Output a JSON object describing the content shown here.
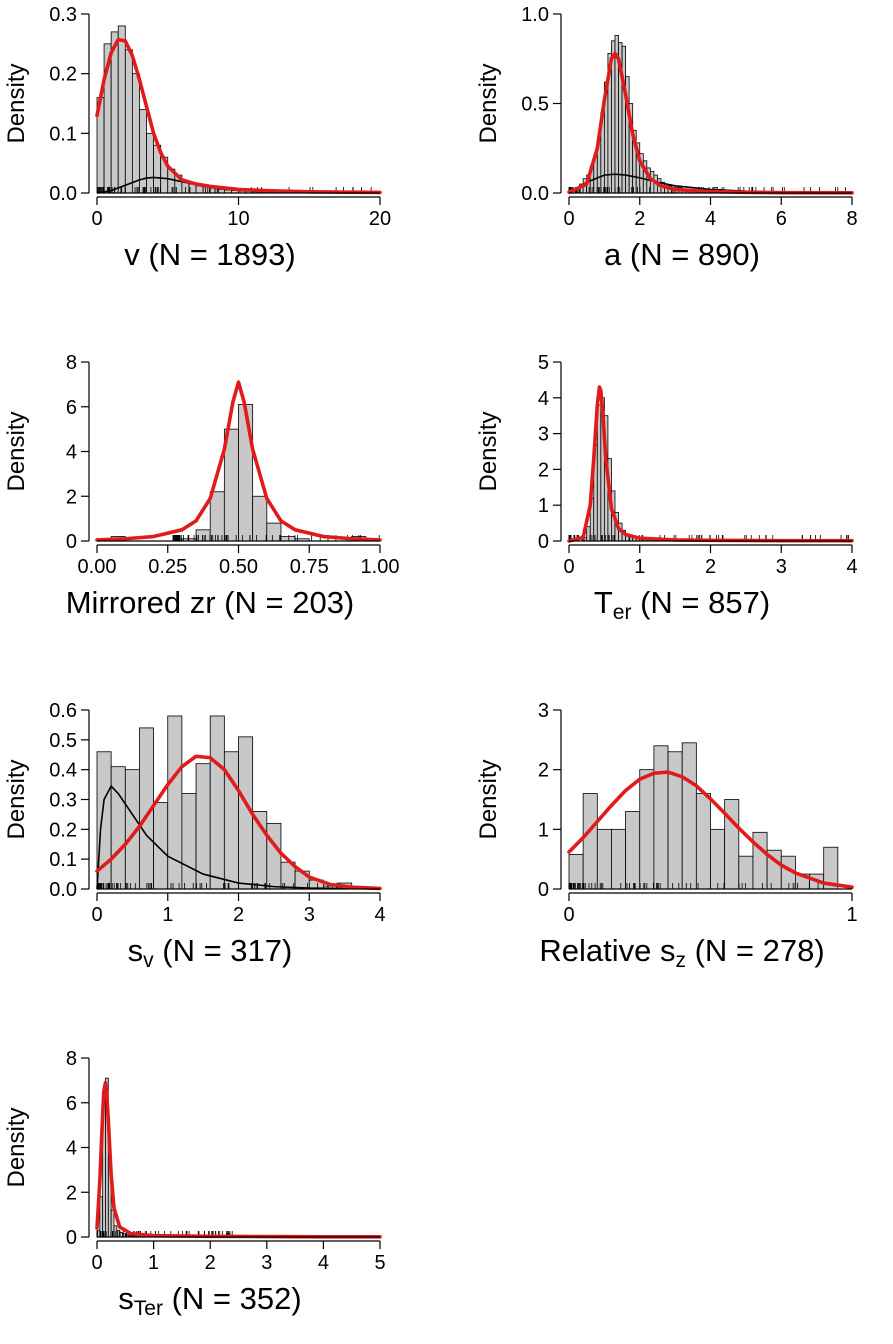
{
  "figure": {
    "panels": [
      {
        "id": "v",
        "caption_prefix": "v",
        "caption_sub": "",
        "caption_suffix": " (N = 1893)"
      },
      {
        "id": "a",
        "caption_prefix": "a",
        "caption_sub": "",
        "caption_suffix": " (N = 890)"
      },
      {
        "id": "zr",
        "caption_prefix": "Mirrored zr  ",
        "caption_sub": "",
        "caption_suffix": "(N = 203)"
      },
      {
        "id": "ter",
        "caption_prefix": "T",
        "caption_sub": "er",
        "caption_suffix": " (N = 857)"
      },
      {
        "id": "sv",
        "caption_prefix": "s",
        "caption_sub": "v",
        "caption_suffix": " (N = 317)"
      },
      {
        "id": "sz",
        "caption_prefix": "Relative s",
        "caption_sub": "z",
        "caption_suffix": " (N = 278)"
      },
      {
        "id": "ster",
        "caption_prefix": "s",
        "caption_sub": "Ter",
        "caption_suffix": " (N = 352)"
      }
    ]
  },
  "colors": {
    "bar_fill": "#c8c8c8",
    "bar_stroke": "#000000",
    "fit_curve": "#e01b1b",
    "component_curve": "#000000"
  },
  "chart_data": [
    {
      "id": "v",
      "type": "bar",
      "subtype": "histogram_density",
      "title": "v (N = 1893)",
      "ylabel": "Density",
      "xlim": [
        0,
        20
      ],
      "ylim": [
        0,
        0.3
      ],
      "xticks": [
        0,
        10,
        20
      ],
      "xtick_labels": [
        "0",
        "10",
        "20"
      ],
      "yticks": [
        0,
        0.1,
        0.2,
        0.3
      ],
      "ytick_labels": [
        "0.0",
        "0.1",
        "0.2",
        "0.3"
      ],
      "bin_start": 0,
      "bin_width": 0.5,
      "values": [
        0.16,
        0.25,
        0.27,
        0.28,
        0.24,
        0.2,
        0.14,
        0.1,
        0.08,
        0.06,
        0.04,
        0.03,
        0.02,
        0.015,
        0.012,
        0.01,
        0.008,
        0.006,
        0.005,
        0.004,
        0.003,
        0.003,
        0.002,
        0.002,
        0.001,
        0.001,
        0.001,
        0.001,
        0.001
      ],
      "fit_curve": {
        "x": [
          0,
          0.5,
          1,
          1.5,
          2,
          2.5,
          3,
          3.5,
          4,
          4.5,
          5,
          6,
          7,
          8,
          10,
          12,
          15,
          20
        ],
        "y": [
          0.13,
          0.19,
          0.235,
          0.257,
          0.255,
          0.23,
          0.19,
          0.145,
          0.1,
          0.068,
          0.045,
          0.022,
          0.015,
          0.011,
          0.006,
          0.004,
          0.002,
          0.001
        ]
      },
      "component_curve": {
        "x": [
          0,
          1,
          2,
          3,
          3.5,
          4,
          5,
          6,
          7,
          8,
          10,
          12,
          15,
          20
        ],
        "y": [
          0,
          0.004,
          0.013,
          0.022,
          0.025,
          0.026,
          0.024,
          0.019,
          0.014,
          0.01,
          0.005,
          0.003,
          0.001,
          0
        ]
      },
      "rug_max": 20
    },
    {
      "id": "a",
      "type": "bar",
      "subtype": "histogram_density",
      "title": "a (N = 890)",
      "ylabel": "Density",
      "xlim": [
        0,
        8
      ],
      "ylim": [
        0,
        1.0
      ],
      "xticks": [
        0,
        2,
        4,
        6,
        8
      ],
      "xtick_labels": [
        "0",
        "2",
        "4",
        "6",
        "8"
      ],
      "yticks": [
        0,
        0.5,
        1.0
      ],
      "ytick_labels": [
        "0.0",
        "0.5",
        "1.0"
      ],
      "bin_start": 0.1,
      "bin_width": 0.1,
      "values": [
        0.01,
        0.03,
        0.05,
        0.08,
        0.1,
        0.15,
        0.2,
        0.3,
        0.45,
        0.62,
        0.78,
        0.85,
        0.88,
        0.84,
        0.82,
        0.65,
        0.5,
        0.35,
        0.28,
        0.22,
        0.18,
        0.14,
        0.12,
        0.1,
        0.08,
        0.06,
        0.05,
        0.04,
        0.04,
        0.03,
        0.03,
        0.02,
        0.02,
        0.02,
        0.01,
        0.01,
        0.01,
        0.01,
        0.01,
        0.01,
        0.03,
        0.02,
        0.01
      ],
      "fit_curve": {
        "x": [
          0,
          0.5,
          0.8,
          1.0,
          1.2,
          1.3,
          1.4,
          1.6,
          1.8,
          2.0,
          2.3,
          2.6,
          3,
          4,
          5,
          6,
          8
        ],
        "y": [
          0.005,
          0.05,
          0.25,
          0.52,
          0.75,
          0.78,
          0.75,
          0.55,
          0.33,
          0.18,
          0.08,
          0.04,
          0.02,
          0.008,
          0.004,
          0.002,
          0.001
        ]
      },
      "component_curve": {
        "x": [
          0,
          0.5,
          1,
          1.3,
          1.6,
          2,
          2.5,
          3,
          4,
          5,
          6,
          8
        ],
        "y": [
          0,
          0.06,
          0.1,
          0.105,
          0.1,
          0.085,
          0.06,
          0.04,
          0.02,
          0.01,
          0.005,
          0
        ]
      },
      "rug_max": 8
    },
    {
      "id": "zr",
      "type": "bar",
      "subtype": "histogram_density",
      "title": "Mirrored zr  (N = 203)",
      "ylabel": "Density",
      "xlim": [
        0,
        1
      ],
      "ylim": [
        0,
        8
      ],
      "xticks": [
        0,
        0.25,
        0.5,
        0.75,
        1.0
      ],
      "xtick_labels": [
        "0.00",
        "0.25",
        "0.50",
        "0.75",
        "1.00"
      ],
      "yticks": [
        0,
        2,
        4,
        6,
        8
      ],
      "ytick_labels": [
        "0",
        "2",
        "4",
        "6",
        "8"
      ],
      "bins": [
        {
          "x0": 0.05,
          "x1": 0.1,
          "v": 0.2
        },
        {
          "x0": 0.3,
          "x1": 0.35,
          "v": 0.1
        },
        {
          "x0": 0.35,
          "x1": 0.4,
          "v": 0.5
        },
        {
          "x0": 0.4,
          "x1": 0.45,
          "v": 2.2
        },
        {
          "x0": 0.45,
          "x1": 0.5,
          "v": 5.0
        },
        {
          "x0": 0.5,
          "x1": 0.55,
          "v": 6.1
        },
        {
          "x0": 0.55,
          "x1": 0.6,
          "v": 2.0
        },
        {
          "x0": 0.6,
          "x1": 0.65,
          "v": 0.8
        },
        {
          "x0": 0.65,
          "x1": 0.7,
          "v": 0.2
        },
        {
          "x0": 0.7,
          "x1": 0.75,
          "v": 0.1
        },
        {
          "x0": 0.9,
          "x1": 0.95,
          "v": 0.2
        }
      ],
      "fit_curve": {
        "x": [
          0,
          0.1,
          0.2,
          0.3,
          0.35,
          0.4,
          0.45,
          0.48,
          0.5,
          0.52,
          0.55,
          0.6,
          0.65,
          0.7,
          0.8,
          0.9,
          1.0
        ],
        "y": [
          0.05,
          0.1,
          0.2,
          0.5,
          0.9,
          1.9,
          4.1,
          6.2,
          7.1,
          6.2,
          4.1,
          1.9,
          0.9,
          0.5,
          0.2,
          0.1,
          0.05
        ]
      },
      "rug_max": 1
    },
    {
      "id": "ter",
      "type": "bar",
      "subtype": "histogram_density",
      "title": "Ter (N = 857)",
      "ylabel": "Density",
      "xlim": [
        0,
        4
      ],
      "ylim": [
        0,
        5
      ],
      "xticks": [
        0,
        1,
        2,
        3,
        4
      ],
      "xtick_labels": [
        "0",
        "1",
        "2",
        "3",
        "4"
      ],
      "yticks": [
        0,
        1,
        2,
        3,
        4,
        5
      ],
      "ytick_labels": [
        "0",
        "1",
        "2",
        "3",
        "4",
        "5"
      ],
      "bin_start": 0.2,
      "bin_width": 0.05,
      "values": [
        0.1,
        0.4,
        1.2,
        2.7,
        3.8,
        4.0,
        3.5,
        2.3,
        1.4,
        0.8,
        0.5,
        0.3,
        0.2,
        0.15,
        0.1,
        0.1,
        0.05,
        0.05,
        0.05,
        0.03
      ],
      "fit_curve": {
        "x": [
          0,
          0.2,
          0.3,
          0.35,
          0.4,
          0.43,
          0.45,
          0.48,
          0.52,
          0.6,
          0.7,
          0.8,
          1.0,
          1.5,
          2,
          3,
          4
        ],
        "y": [
          0,
          0.1,
          1.0,
          2.3,
          3.8,
          4.3,
          4.2,
          3.5,
          2.3,
          0.9,
          0.35,
          0.18,
          0.08,
          0.03,
          0.02,
          0.01,
          0.01
        ]
      },
      "rug_max": 4
    },
    {
      "id": "sv",
      "type": "bar",
      "subtype": "histogram_density",
      "title": "sv (N = 317)",
      "ylabel": "Density",
      "xlim": [
        0,
        4
      ],
      "ylim": [
        0,
        0.6
      ],
      "xticks": [
        0,
        1,
        2,
        3,
        4
      ],
      "xtick_labels": [
        "0",
        "1",
        "2",
        "3",
        "4"
      ],
      "yticks": [
        0,
        0.1,
        0.2,
        0.3,
        0.4,
        0.5,
        0.6
      ],
      "ytick_labels": [
        "0.0",
        "0.1",
        "0.2",
        "0.3",
        "0.4",
        "0.5",
        "0.6"
      ],
      "bin_start": 0,
      "bin_width": 0.2,
      "values": [
        0.46,
        0.41,
        0.4,
        0.54,
        0.29,
        0.58,
        0.32,
        0.42,
        0.58,
        0.46,
        0.51,
        0.26,
        0.22,
        0.09,
        0.06,
        0.03,
        0.01,
        0.02
      ],
      "fit_curve": {
        "x": [
          0,
          0.2,
          0.4,
          0.6,
          0.8,
          1.0,
          1.2,
          1.4,
          1.6,
          1.8,
          2.0,
          2.2,
          2.4,
          2.6,
          2.8,
          3.0,
          3.3,
          3.6,
          4.0
        ],
        "y": [
          0.06,
          0.1,
          0.15,
          0.21,
          0.28,
          0.35,
          0.41,
          0.445,
          0.44,
          0.4,
          0.33,
          0.25,
          0.18,
          0.12,
          0.075,
          0.04,
          0.015,
          0.006,
          0.002
        ]
      },
      "component_curve": {
        "x": [
          0,
          0.05,
          0.1,
          0.2,
          0.3,
          0.5,
          0.7,
          1.0,
          1.5,
          2.0,
          2.5,
          3.0,
          4.0
        ],
        "y": [
          0,
          0.2,
          0.3,
          0.345,
          0.32,
          0.25,
          0.18,
          0.11,
          0.05,
          0.02,
          0.008,
          0.003,
          0
        ]
      },
      "rug_max": 3.6
    },
    {
      "id": "sz",
      "type": "bar",
      "subtype": "histogram_density",
      "title": "Relative sz (N = 278)",
      "ylabel": "Density",
      "xlim": [
        0,
        1
      ],
      "ylim": [
        0,
        3
      ],
      "xticks": [
        0,
        1
      ],
      "xtick_labels": [
        "0",
        "1"
      ],
      "yticks": [
        0,
        1,
        2,
        3
      ],
      "ytick_labels": [
        "0",
        "1",
        "2",
        "3"
      ],
      "bin_start": 0,
      "bin_width": 0.05,
      "values": [
        0.58,
        1.6,
        1.0,
        1.0,
        1.3,
        2.0,
        2.4,
        2.3,
        2.45,
        1.6,
        1.0,
        1.5,
        0.55,
        0.95,
        0.65,
        0.55,
        0.25,
        0.25,
        0.7
      ],
      "fit_curve": {
        "x": [
          0,
          0.05,
          0.1,
          0.15,
          0.2,
          0.25,
          0.3,
          0.35,
          0.4,
          0.45,
          0.5,
          0.55,
          0.6,
          0.65,
          0.7,
          0.75,
          0.8,
          0.9,
          1.0
        ],
        "y": [
          0.62,
          0.86,
          1.13,
          1.4,
          1.65,
          1.84,
          1.94,
          1.96,
          1.88,
          1.73,
          1.51,
          1.27,
          1.02,
          0.79,
          0.58,
          0.4,
          0.27,
          0.1,
          0.03
        ]
      },
      "rug_max": 0.9
    },
    {
      "id": "ster",
      "type": "bar",
      "subtype": "histogram_density",
      "title": "sTer (N = 352)",
      "ylabel": "Density",
      "xlim": [
        0,
        5
      ],
      "ylim": [
        0,
        8
      ],
      "xticks": [
        0,
        1,
        2,
        3,
        4,
        5
      ],
      "xtick_labels": [
        "0",
        "1",
        "2",
        "3",
        "4",
        "5"
      ],
      "yticks": [
        0,
        2,
        4,
        6,
        8
      ],
      "ytick_labels": [
        "0",
        "2",
        "4",
        "6",
        "8"
      ],
      "bin_start": 0,
      "bin_width": 0.05,
      "values": [
        0.3,
        1.8,
        6.5,
        7.1,
        3.5,
        1.2,
        0.5,
        0.3,
        0.2,
        0.15,
        0.1,
        0.08,
        0.05,
        0.05
      ],
      "fit_curve": {
        "x": [
          0,
          0.05,
          0.1,
          0.12,
          0.15,
          0.17,
          0.2,
          0.25,
          0.3,
          0.4,
          0.6,
          1.0,
          2,
          3,
          4,
          5
        ],
        "y": [
          0.4,
          2.5,
          5.5,
          6.5,
          6.9,
          6.5,
          5.2,
          2.8,
          1.3,
          0.45,
          0.15,
          0.06,
          0.03,
          0.02,
          0.01,
          0.01
        ]
      },
      "extra_bins": [
        {
          "x0": 2.3,
          "x1": 2.35,
          "v": 0.15
        }
      ],
      "rug_max": 2.4
    }
  ]
}
